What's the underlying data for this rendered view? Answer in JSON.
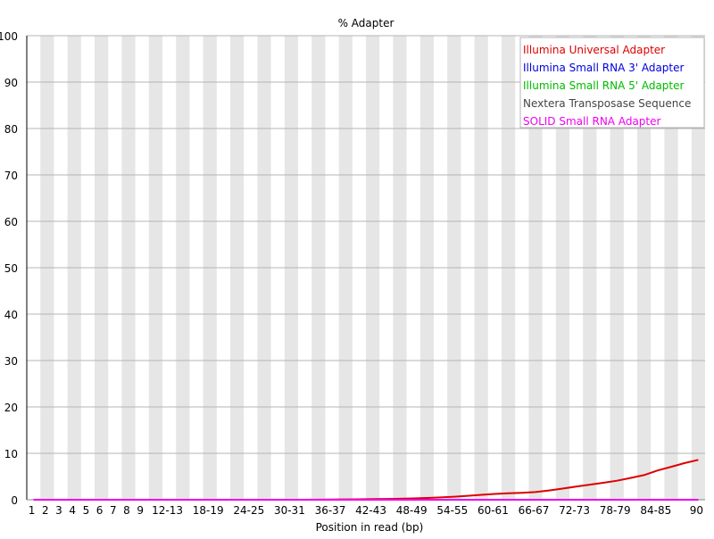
{
  "chart_data": {
    "type": "line",
    "title": "% Adapter",
    "xlabel": "Position in read (bp)",
    "ylabel": "",
    "ylim": [
      0,
      100
    ],
    "yticks": [
      0,
      10,
      20,
      30,
      40,
      50,
      60,
      70,
      80,
      90,
      100
    ],
    "grid": true,
    "legend_position": "top-right",
    "categories": [
      "1",
      "2",
      "3",
      "4",
      "5",
      "6",
      "7",
      "8",
      "9",
      "10-11",
      "12-13",
      "14-15",
      "16-17",
      "18-19",
      "20-21",
      "22-23",
      "24-25",
      "26-27",
      "28-29",
      "30-31",
      "32-33",
      "34-35",
      "36-37",
      "38-39",
      "40-41",
      "42-43",
      "44-45",
      "46-47",
      "48-49",
      "50-51",
      "52-53",
      "54-55",
      "56-57",
      "58-59",
      "60-61",
      "62-63",
      "64-65",
      "66-67",
      "68-69",
      "70-71",
      "72-73",
      "74-75",
      "76-77",
      "78-79",
      "80-81",
      "82-83",
      "84-85",
      "86-87",
      "88-89",
      "90"
    ],
    "tick_labels": [
      "1",
      "2",
      "3",
      "4",
      "5",
      "6",
      "7",
      "8",
      "9",
      "12-13",
      "18-19",
      "24-25",
      "30-31",
      "36-37",
      "42-43",
      "48-49",
      "54-55",
      "60-61",
      "66-67",
      "72-73",
      "78-79",
      "84-85",
      "90"
    ],
    "series": [
      {
        "name": "Illumina Universal Adapter",
        "color": "#dd0000",
        "values": [
          0,
          0,
          0,
          0,
          0,
          0,
          0,
          0,
          0,
          0,
          0,
          0,
          0,
          0,
          0,
          0,
          0,
          0,
          0,
          0,
          0,
          0.02,
          0.05,
          0.08,
          0.1,
          0.13,
          0.17,
          0.22,
          0.28,
          0.38,
          0.5,
          0.65,
          0.85,
          1.05,
          1.25,
          1.4,
          1.5,
          1.65,
          2.0,
          2.4,
          2.85,
          3.25,
          3.65,
          4.1,
          4.7,
          5.3,
          6.3,
          7.1,
          7.9,
          8.6
        ]
      },
      {
        "name": "Illumina Small RNA 3' Adapter",
        "color": "#0000dd",
        "values": [
          0,
          0,
          0,
          0,
          0,
          0,
          0,
          0,
          0,
          0,
          0,
          0,
          0,
          0,
          0,
          0,
          0,
          0,
          0,
          0,
          0,
          0,
          0,
          0,
          0,
          0,
          0,
          0,
          0,
          0,
          0,
          0,
          0,
          0,
          0,
          0,
          0,
          0,
          0,
          0,
          0,
          0,
          0,
          0,
          0,
          0,
          0,
          0,
          0,
          0
        ]
      },
      {
        "name": "Illumina Small RNA 5' Adapter",
        "color": "#00bb00",
        "values": [
          0,
          0,
          0,
          0,
          0,
          0,
          0,
          0,
          0,
          0,
          0,
          0,
          0,
          0,
          0,
          0,
          0,
          0,
          0,
          0,
          0,
          0,
          0,
          0,
          0,
          0,
          0,
          0,
          0,
          0,
          0,
          0,
          0,
          0,
          0,
          0,
          0,
          0,
          0,
          0,
          0,
          0,
          0,
          0,
          0,
          0,
          0,
          0,
          0,
          0
        ]
      },
      {
        "name": "Nextera Transposase Sequence",
        "color": "#444444",
        "values": [
          0,
          0,
          0,
          0,
          0,
          0,
          0,
          0,
          0,
          0,
          0,
          0,
          0,
          0,
          0,
          0,
          0,
          0,
          0,
          0,
          0,
          0,
          0,
          0,
          0,
          0,
          0,
          0,
          0,
          0,
          0,
          0,
          0,
          0,
          0,
          0,
          0,
          0,
          0,
          0,
          0,
          0,
          0,
          0,
          0,
          0,
          0,
          0,
          0,
          0
        ]
      },
      {
        "name": "SOLID Small RNA Adapter",
        "color": "#ee00ee",
        "values": [
          0,
          0,
          0,
          0,
          0,
          0,
          0,
          0,
          0,
          0,
          0,
          0,
          0,
          0,
          0,
          0,
          0,
          0,
          0,
          0,
          0,
          0,
          0,
          0,
          0,
          0,
          0,
          0,
          0,
          0,
          0,
          0,
          0,
          0,
          0,
          0,
          0,
          0,
          0,
          0,
          0,
          0,
          0,
          0,
          0,
          0,
          0,
          0,
          0,
          0
        ]
      }
    ]
  }
}
